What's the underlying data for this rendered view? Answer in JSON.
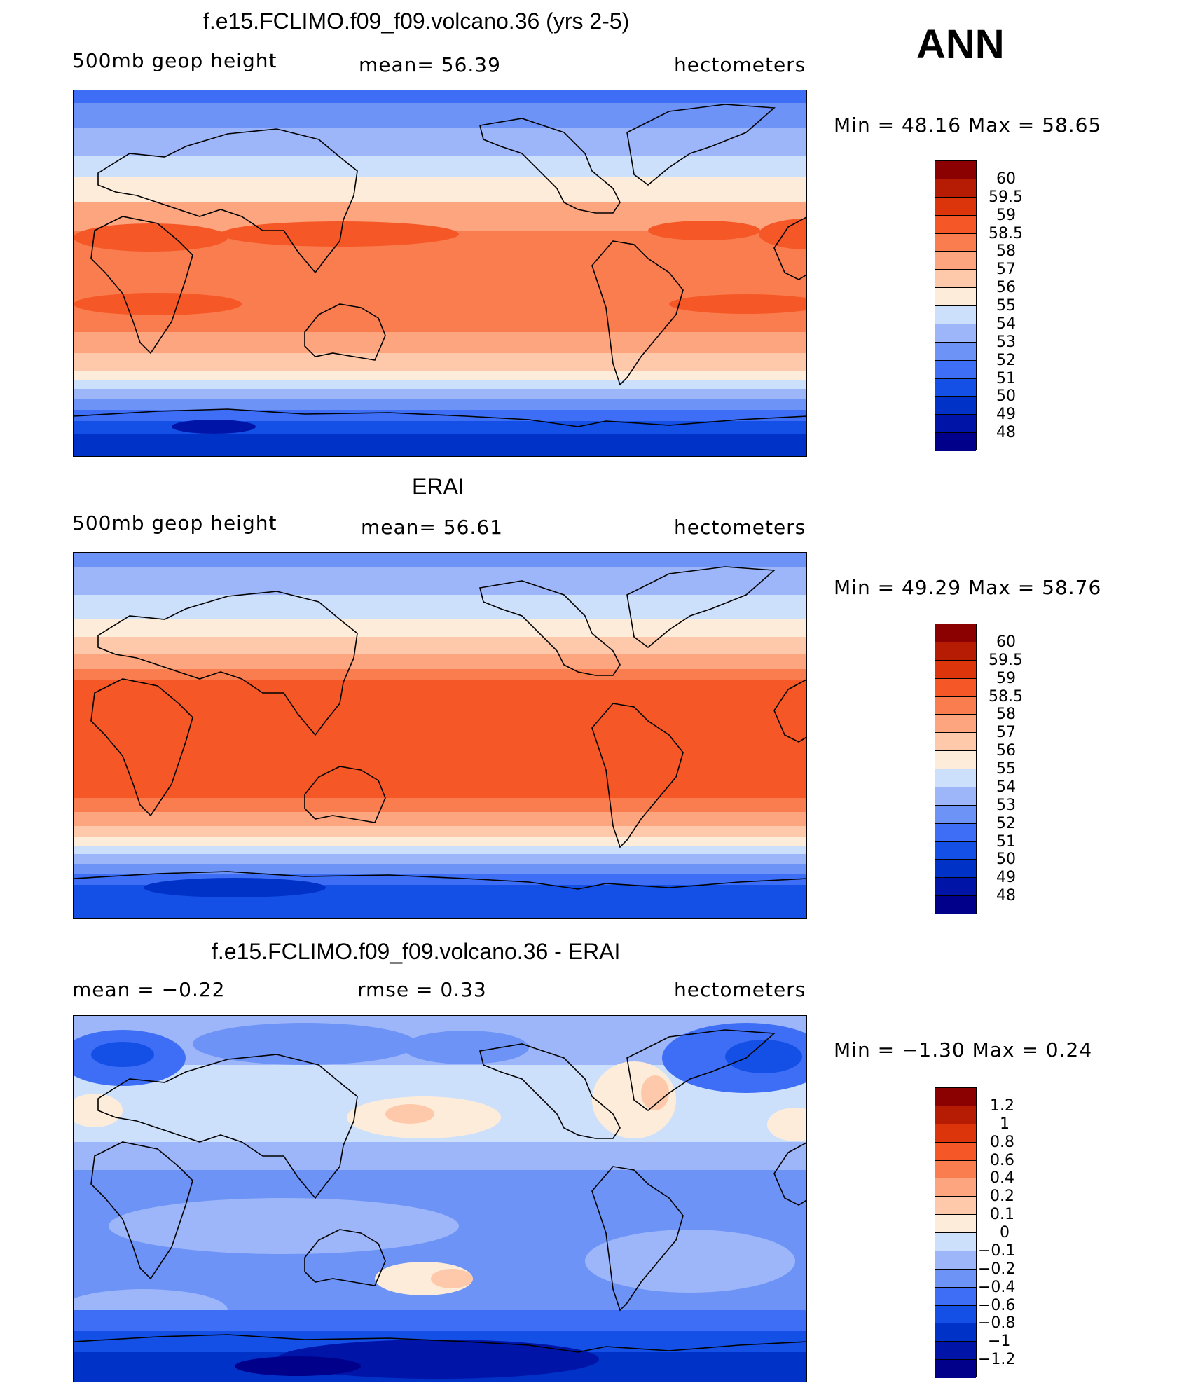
{
  "ann_label": "ANN",
  "colors": {
    "sequential": [
      "#00008b",
      "#0015a8",
      "#0032c8",
      "#1450e6",
      "#3d6ef5",
      "#6d93f7",
      "#9db6f9",
      "#cde0fb",
      "#fdecd9",
      "#fdc9aa",
      "#fca57f",
      "#fa7d4f",
      "#f55727",
      "#dc350c",
      "#b51c03",
      "#8b0000"
    ],
    "diverging": [
      "#00008b",
      "#0015a8",
      "#0032c8",
      "#1450e6",
      "#3d6ef5",
      "#6d93f7",
      "#9db6f9",
      "#cde0fb",
      "#fdecd9",
      "#fdc9aa",
      "#fca57f",
      "#fa7d4f",
      "#f55727",
      "#dc350c",
      "#b51c03",
      "#8b0000"
    ]
  },
  "panels": [
    {
      "title": "f.e15.FCLIMO.f09_f09.volcano.36 (yrs 2-5)",
      "left_text": "500mb  geop  height",
      "center_text": "mean=   56.39",
      "right_text": "hectometers",
      "minmax": "Min  =    48.16  Max  =    58.65",
      "colorbar_labels": [
        "60",
        "59.5",
        "59",
        "58.5",
        "58",
        "57",
        "56",
        "55",
        "54",
        "53",
        "52",
        "51",
        "50",
        "49",
        "48"
      ]
    },
    {
      "title": "ERAI",
      "left_text": "500mb  geop  height",
      "center_text": "mean=   56.61",
      "right_text": "hectometers",
      "minmax": "Min  =    49.29  Max  =    58.76",
      "colorbar_labels": [
        "60",
        "59.5",
        "59",
        "58.5",
        "58",
        "57",
        "56",
        "55",
        "54",
        "53",
        "52",
        "51",
        "50",
        "49",
        "48"
      ]
    },
    {
      "title": "f.e15.FCLIMO.f09_f09.volcano.36 - ERAI",
      "left_text": "mean  =    −0.22",
      "center_text": "rmse  =     0.33",
      "right_text": "hectometers",
      "minmax": "Min  =   −1.30  Max  =     0.24",
      "colorbar_labels": [
        "1.2",
        "1",
        "0.8",
        "0.6",
        "0.4",
        "0.2",
        "0.1",
        "0",
        "−0.1",
        "−0.2",
        "−0.4",
        "−0.6",
        "−0.8",
        "−1",
        "−1.2"
      ]
    }
  ]
}
